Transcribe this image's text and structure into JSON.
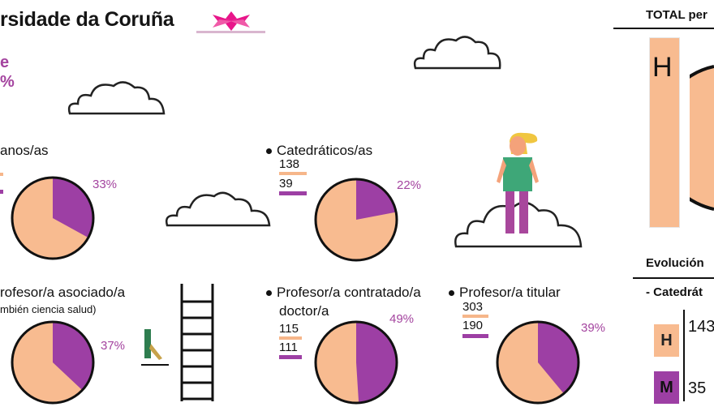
{
  "header": {
    "title": "rsidade da Coruña"
  },
  "fragments": {
    "left_pink_1": "e",
    "left_pink_2": "%"
  },
  "categories": [
    {
      "label": "anos/as",
      "sublabel": "",
      "h_value": "",
      "m_value": "",
      "h_pct": 67,
      "m_pct": 33,
      "pct_label": "33%"
    },
    {
      "label": "Catedráticos/as",
      "sublabel": "",
      "h_value": "138",
      "m_value": "39",
      "h_pct": 78,
      "m_pct": 22,
      "pct_label": "22%"
    },
    {
      "label": "rofesor/a asociado/a",
      "sublabel": "mbién ciencia salud)",
      "h_value": "",
      "m_value": "",
      "h_pct": 63,
      "m_pct": 37,
      "pct_label": "37%"
    },
    {
      "label": "Profesor/a contratado/a",
      "label_line2": "doctor/a",
      "sublabel": "",
      "h_value": "115",
      "m_value": "111",
      "h_pct": 51,
      "m_pct": 49,
      "pct_label": "49%"
    },
    {
      "label": "Profesor/a titular",
      "sublabel": "",
      "h_value": "303",
      "m_value": "190",
      "h_pct": 61,
      "m_pct": 39,
      "pct_label": "39%"
    }
  ],
  "right_panel": {
    "total_title": "TOTAL per",
    "big_letter": "H",
    "evolution_title": "Evolución",
    "evolution_sub": "- Catedrát",
    "h_label": "H",
    "m_label": "M",
    "h_value": "143",
    "m_value": "35"
  },
  "colors": {
    "men": "#f8bb90",
    "women": "#9d3fa4",
    "pct_text": "#a4449f",
    "outline": "#111111"
  }
}
